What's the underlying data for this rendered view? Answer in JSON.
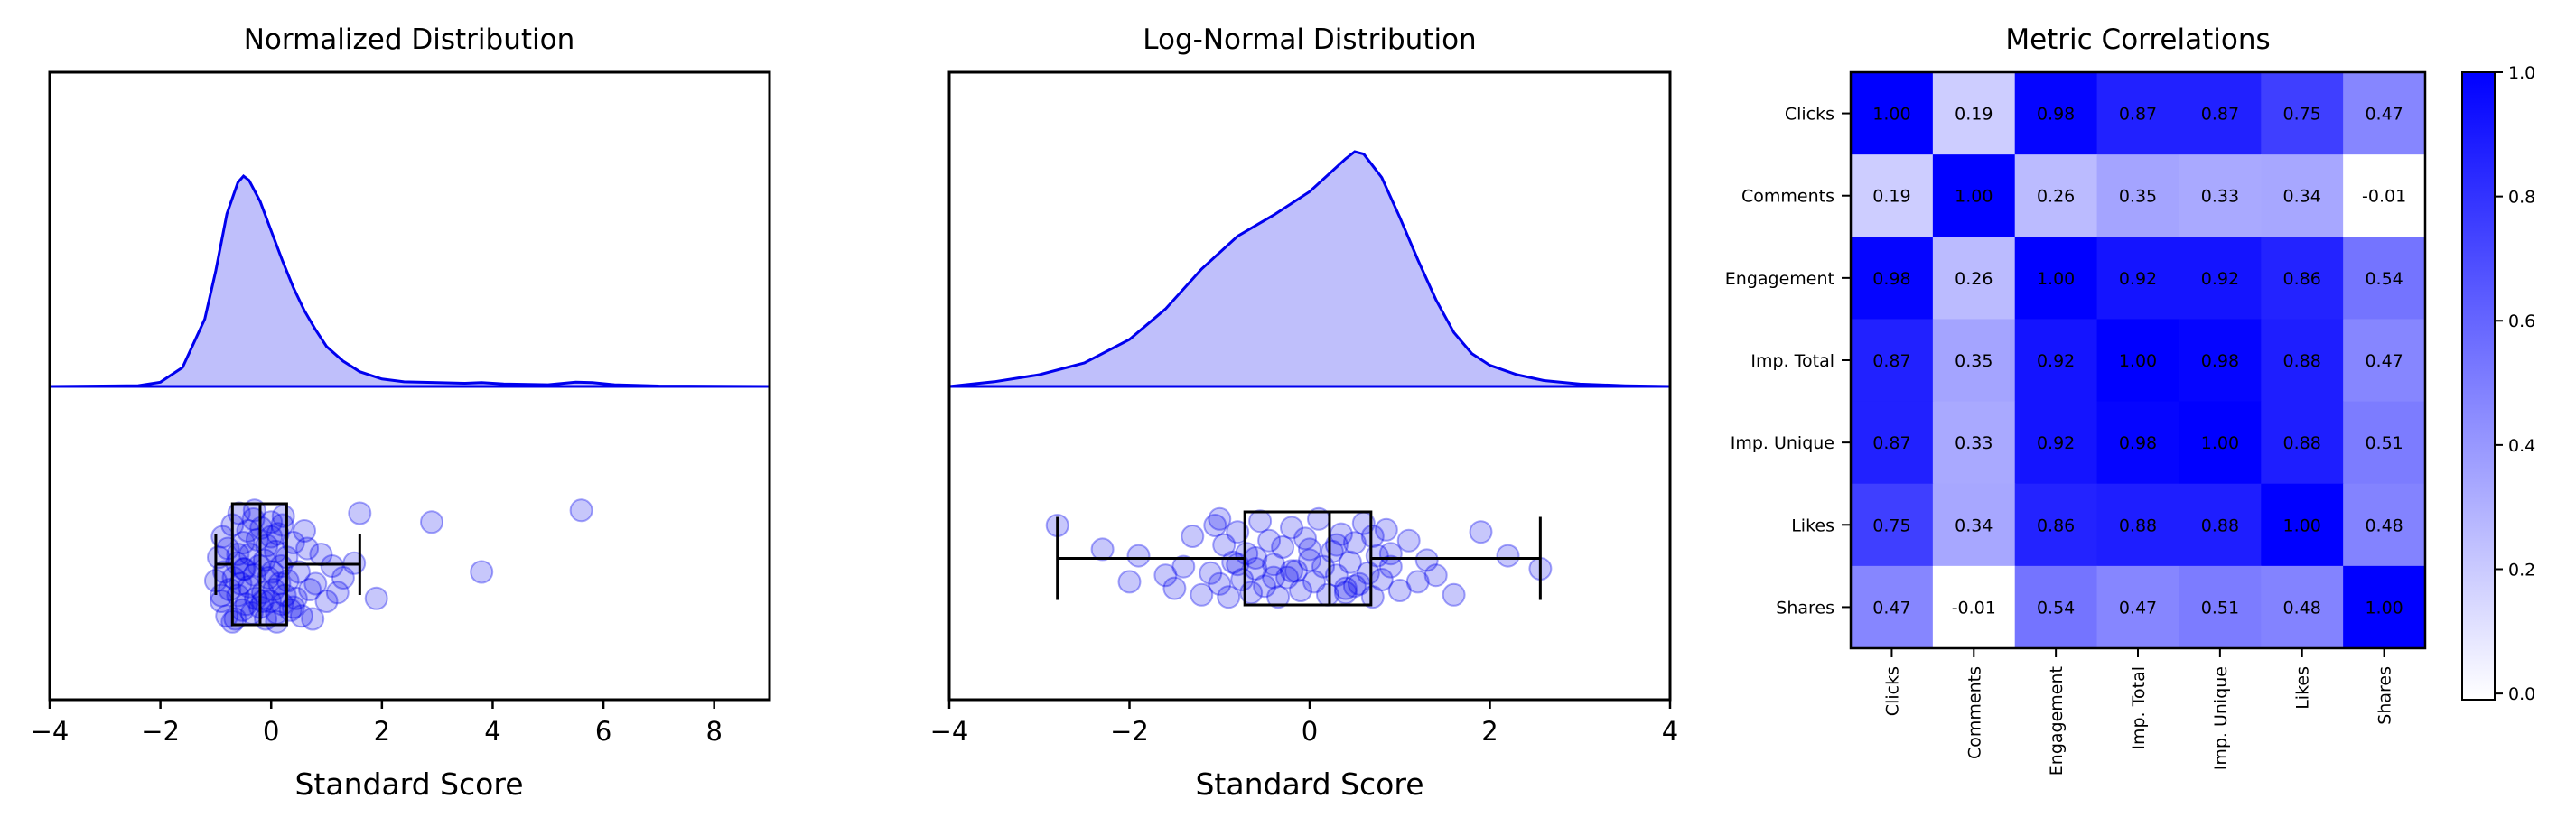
{
  "chart_data": [
    {
      "type": "area",
      "title": "Normalized Distribution",
      "xlabel": "Standard Score",
      "ylabel": "",
      "xlim": [
        -4,
        9
      ],
      "xticks": [
        -4,
        -2,
        0,
        2,
        4,
        6,
        8
      ],
      "xtick_labels": [
        "−4",
        "−2",
        "0",
        "2",
        "4",
        "6",
        "8"
      ],
      "grid": false,
      "color": "#0000ee",
      "fill_color": "#bfbffb",
      "density": {
        "x": [
          -4,
          -2.4,
          -2,
          -1.6,
          -1.2,
          -1.0,
          -0.8,
          -0.6,
          -0.5,
          -0.4,
          -0.2,
          0,
          0.2,
          0.4,
          0.6,
          0.8,
          1.0,
          1.3,
          1.6,
          2.0,
          2.4,
          3.0,
          3.5,
          3.8,
          4.2,
          5.0,
          5.5,
          5.8,
          6.2,
          7,
          9
        ],
        "y": [
          0,
          0.004,
          0.02,
          0.09,
          0.32,
          0.55,
          0.82,
          0.97,
          1.0,
          0.98,
          0.88,
          0.74,
          0.6,
          0.47,
          0.36,
          0.27,
          0.19,
          0.12,
          0.07,
          0.035,
          0.022,
          0.018,
          0.015,
          0.018,
          0.012,
          0.008,
          0.02,
          0.018,
          0.008,
          0.002,
          0
        ]
      },
      "boxplot": {
        "whisker_low": -1.0,
        "q1": -0.7,
        "median": -0.2,
        "q3": 0.28,
        "whisker_high": 1.6
      },
      "points": {
        "x": [
          -1.0,
          -0.95,
          -0.9,
          -0.88,
          -0.85,
          -0.8,
          -0.78,
          -0.75,
          -0.7,
          -0.68,
          -0.65,
          -0.62,
          -0.6,
          -0.58,
          -0.55,
          -0.52,
          -0.5,
          -0.48,
          -0.45,
          -0.42,
          -0.4,
          -0.38,
          -0.35,
          -0.32,
          -0.3,
          -0.28,
          -0.25,
          -0.22,
          -0.2,
          -0.18,
          -0.15,
          -0.12,
          -0.1,
          -0.08,
          -0.05,
          -0.02,
          0,
          0.02,
          0.05,
          0.08,
          0.1,
          0.12,
          0.15,
          0.18,
          0.2,
          0.22,
          0.25,
          0.28,
          0.3,
          0.35,
          0.4,
          0.45,
          0.5,
          0.55,
          0.6,
          0.7,
          0.75,
          0.8,
          0.9,
          1.0,
          1.1,
          1.2,
          1.3,
          1.5,
          1.6,
          1.9,
          2.9,
          3.8,
          5.6,
          -0.7,
          -0.3,
          0.1,
          -0.5,
          0.0,
          0.4,
          -0.9,
          -0.6,
          0.2,
          -0.15,
          0.65
        ],
        "y": [
          0.25,
          -0.15,
          0.6,
          -0.5,
          0.1,
          0.85,
          -0.3,
          0.4,
          -0.7,
          0.2,
          0.9,
          -0.05,
          0.5,
          -0.9,
          0.3,
          0.75,
          -0.4,
          0.05,
          0.65,
          -0.6,
          0.35,
          -0.2,
          0.8,
          -0.8,
          0.15,
          0.55,
          -0.45,
          0.0,
          0.7,
          -0.65,
          0.45,
          -0.1,
          0.9,
          -0.35,
          0.2,
          0.6,
          -0.75,
          0.1,
          0.4,
          -0.25,
          0.8,
          -0.55,
          0.3,
          0.0,
          0.65,
          -0.85,
          0.5,
          -0.15,
          0.25,
          0.75,
          -0.4,
          0.55,
          0.1,
          0.85,
          -0.6,
          0.4,
          0.9,
          0.3,
          -0.2,
          0.6,
          0.0,
          0.45,
          0.2,
          -0.05,
          -0.9,
          0.55,
          -0.75,
          0.1,
          -0.95,
          0.95,
          -0.95,
          0.95,
          0.05,
          -0.5,
          0.7,
          0.5,
          -0.2,
          -0.7,
          0.6,
          -0.3
        ]
      }
    },
    {
      "type": "area",
      "title": "Log-Normal Distribution",
      "xlabel": "Standard Score",
      "ylabel": "",
      "xlim": [
        -4,
        4
      ],
      "xticks": [
        -4,
        -2,
        0,
        2,
        4
      ],
      "xtick_labels": [
        "−4",
        "−2",
        "0",
        "2",
        "4"
      ],
      "grid": false,
      "color": "#0000ee",
      "fill_color": "#bfbffb",
      "density": {
        "x": [
          -4,
          -3.5,
          -3.0,
          -2.5,
          -2.0,
          -1.6,
          -1.2,
          -0.8,
          -0.4,
          0,
          0.2,
          0.4,
          0.5,
          0.6,
          0.8,
          1.0,
          1.2,
          1.4,
          1.6,
          1.8,
          2.0,
          2.3,
          2.6,
          3.0,
          3.5,
          4.0
        ],
        "y": [
          0,
          0.02,
          0.05,
          0.1,
          0.2,
          0.33,
          0.5,
          0.64,
          0.73,
          0.83,
          0.9,
          0.97,
          1.0,
          0.99,
          0.89,
          0.72,
          0.54,
          0.37,
          0.23,
          0.14,
          0.09,
          0.05,
          0.025,
          0.01,
          0.003,
          0
        ]
      },
      "boxplot": {
        "whisker_low": -2.8,
        "q1": -0.72,
        "median": 0.22,
        "q3": 0.68,
        "whisker_high": 2.56
      },
      "points": {
        "x": [
          -2.8,
          -2.3,
          -2.0,
          -1.9,
          -1.6,
          -1.5,
          -1.4,
          -1.3,
          -1.2,
          -1.1,
          -1.05,
          -1.0,
          -0.95,
          -0.9,
          -0.85,
          -0.8,
          -0.75,
          -0.7,
          -0.65,
          -0.6,
          -0.55,
          -0.5,
          -0.45,
          -0.4,
          -0.35,
          -0.3,
          -0.25,
          -0.2,
          -0.15,
          -0.1,
          -0.05,
          0,
          0.05,
          0.1,
          0.15,
          0.2,
          0.25,
          0.3,
          0.35,
          0.4,
          0.45,
          0.5,
          0.55,
          0.6,
          0.65,
          0.7,
          0.75,
          0.8,
          0.85,
          0.9,
          1.0,
          1.1,
          1.2,
          1.3,
          1.4,
          1.6,
          1.9,
          2.2,
          2.56,
          -1.0,
          -0.6,
          -0.2,
          0.3,
          0.5,
          0.7,
          -0.8,
          0.0,
          0.4,
          -0.4,
          0.9
        ],
        "y": [
          -0.75,
          -0.2,
          0.55,
          -0.05,
          0.4,
          0.7,
          0.2,
          -0.5,
          0.85,
          0.35,
          -0.75,
          0.6,
          -0.3,
          0.9,
          0.1,
          -0.6,
          0.5,
          -0.1,
          0.8,
          0.25,
          -0.85,
          0.65,
          -0.4,
          0.15,
          0.9,
          -0.25,
          0.45,
          -0.7,
          0.3,
          0.75,
          -0.45,
          0.05,
          0.55,
          -0.9,
          0.2,
          0.85,
          -0.15,
          0.4,
          -0.55,
          0.7,
          0.1,
          -0.35,
          0.6,
          -0.8,
          0.35,
          0.9,
          -0.05,
          0.5,
          -0.65,
          0.2,
          0.75,
          -0.4,
          0.55,
          0.05,
          0.4,
          0.85,
          -0.6,
          -0.05,
          0.25,
          -0.9,
          0.0,
          0.3,
          -0.3,
          0.65,
          -0.5,
          0.15,
          -0.2,
          0.8,
          0.45,
          -0.1
        ]
      }
    },
    {
      "type": "heatmap",
      "title": "Metric Correlations",
      "xlabel": "",
      "ylabel": "",
      "rows": [
        "Clicks",
        "Comments",
        "Engagement",
        "Imp. Total",
        "Imp. Unique",
        "Likes",
        "Shares"
      ],
      "cols": [
        "Clicks",
        "Comments",
        "Engagement",
        "Imp. Total",
        "Imp. Unique",
        "Likes",
        "Shares"
      ],
      "values": [
        [
          1.0,
          0.19,
          0.98,
          0.87,
          0.87,
          0.75,
          0.47
        ],
        [
          0.19,
          1.0,
          0.26,
          0.35,
          0.33,
          0.34,
          -0.01
        ],
        [
          0.98,
          0.26,
          1.0,
          0.92,
          0.92,
          0.86,
          0.54
        ],
        [
          0.87,
          0.35,
          0.92,
          1.0,
          0.98,
          0.88,
          0.47
        ],
        [
          0.87,
          0.33,
          0.92,
          0.98,
          1.0,
          0.88,
          0.51
        ],
        [
          0.75,
          0.34,
          0.86,
          0.88,
          0.88,
          1.0,
          0.48
        ],
        [
          0.47,
          -0.01,
          0.54,
          0.47,
          0.51,
          0.48,
          1.0
        ]
      ],
      "value_labels": [
        [
          "1.00",
          "0.19",
          "0.98",
          "0.87",
          "0.87",
          "0.75",
          "0.47"
        ],
        [
          "0.19",
          "1.00",
          "0.26",
          "0.35",
          "0.33",
          "0.34",
          "-0.01"
        ],
        [
          "0.98",
          "0.26",
          "1.00",
          "0.92",
          "0.92",
          "0.86",
          "0.54"
        ],
        [
          "0.87",
          "0.35",
          "0.92",
          "1.00",
          "0.98",
          "0.88",
          "0.47"
        ],
        [
          "0.87",
          "0.33",
          "0.92",
          "0.98",
          "1.00",
          "0.88",
          "0.51"
        ],
        [
          "0.75",
          "0.34",
          "0.86",
          "0.88",
          "0.88",
          "1.00",
          "0.48"
        ],
        [
          "0.47",
          "-0.01",
          "0.54",
          "0.47",
          "0.51",
          "0.48",
          "1.00"
        ]
      ],
      "color_min": "#ffffff",
      "color_max": "#0000ff",
      "colorbar": {
        "range": [
          -0.01,
          1.0
        ],
        "ticks": [
          0.0,
          0.2,
          0.4,
          0.6,
          0.8,
          1.0
        ],
        "tick_labels": [
          "0.0",
          "0.2",
          "0.4",
          "0.6",
          "0.8",
          "1.0"
        ]
      },
      "grid": false
    }
  ]
}
